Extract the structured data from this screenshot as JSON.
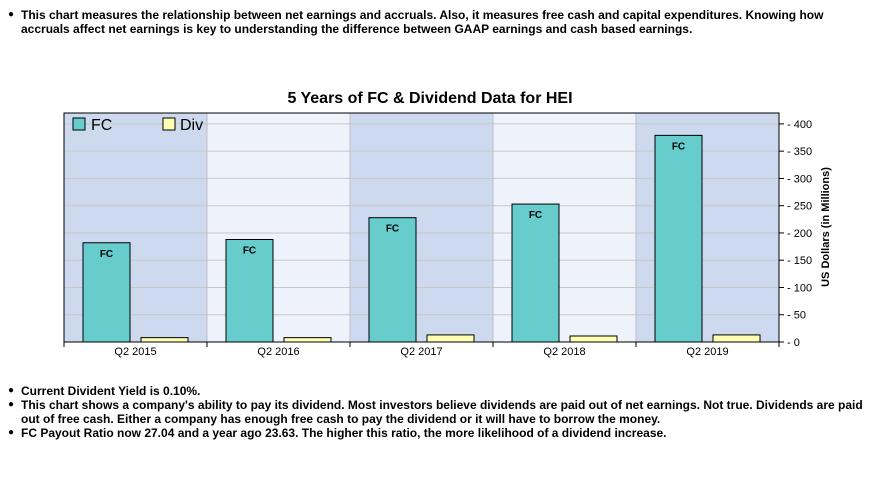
{
  "notes_top": [
    "This chart measures the relationship between net earnings and accruals. Also, it measures free cash and capital expenditures. Knowing how accruals affect net earnings is key to understanding the difference between GAAP earnings and cash based earnings."
  ],
  "notes_bottom": [
    "Current Divident Yield is 0.10%.",
    "This chart shows a company's ability to pay its dividend. Most investors believe dividends are paid out of net earnings. Not true. Dividends are paid out of free cash. Either a company has enough free cash to pay the dividend or it will have to borrow the money.",
    "FC Payout Ratio now 27.04 and a year ago 23.63. The higher this ratio, the more likelihood of a dividend increase."
  ],
  "chart_data": {
    "type": "bar",
    "title": "5 Years of FC & Dividend Data for HEI",
    "ylabel": "US Dollars (in Millions)",
    "categories": [
      "Q2 2015",
      "Q2 2016",
      "Q2 2017",
      "Q2 2018",
      "Q2 2019"
    ],
    "series": [
      {
        "name": "FC",
        "values": [
          182,
          188,
          228,
          253,
          379
        ],
        "color": "#66cccc",
        "data_label": "FC"
      },
      {
        "name": "Div",
        "values": [
          8,
          8,
          13,
          11,
          13
        ],
        "color": "#ffffb3"
      }
    ],
    "ylim": [
      0,
      420
    ],
    "yticks": [
      0,
      50,
      100,
      150,
      200,
      250,
      300,
      350,
      400
    ],
    "legend": "top-left",
    "grid": true,
    "band_colors": [
      "#ccd9ee",
      "#eef2fb"
    ]
  }
}
